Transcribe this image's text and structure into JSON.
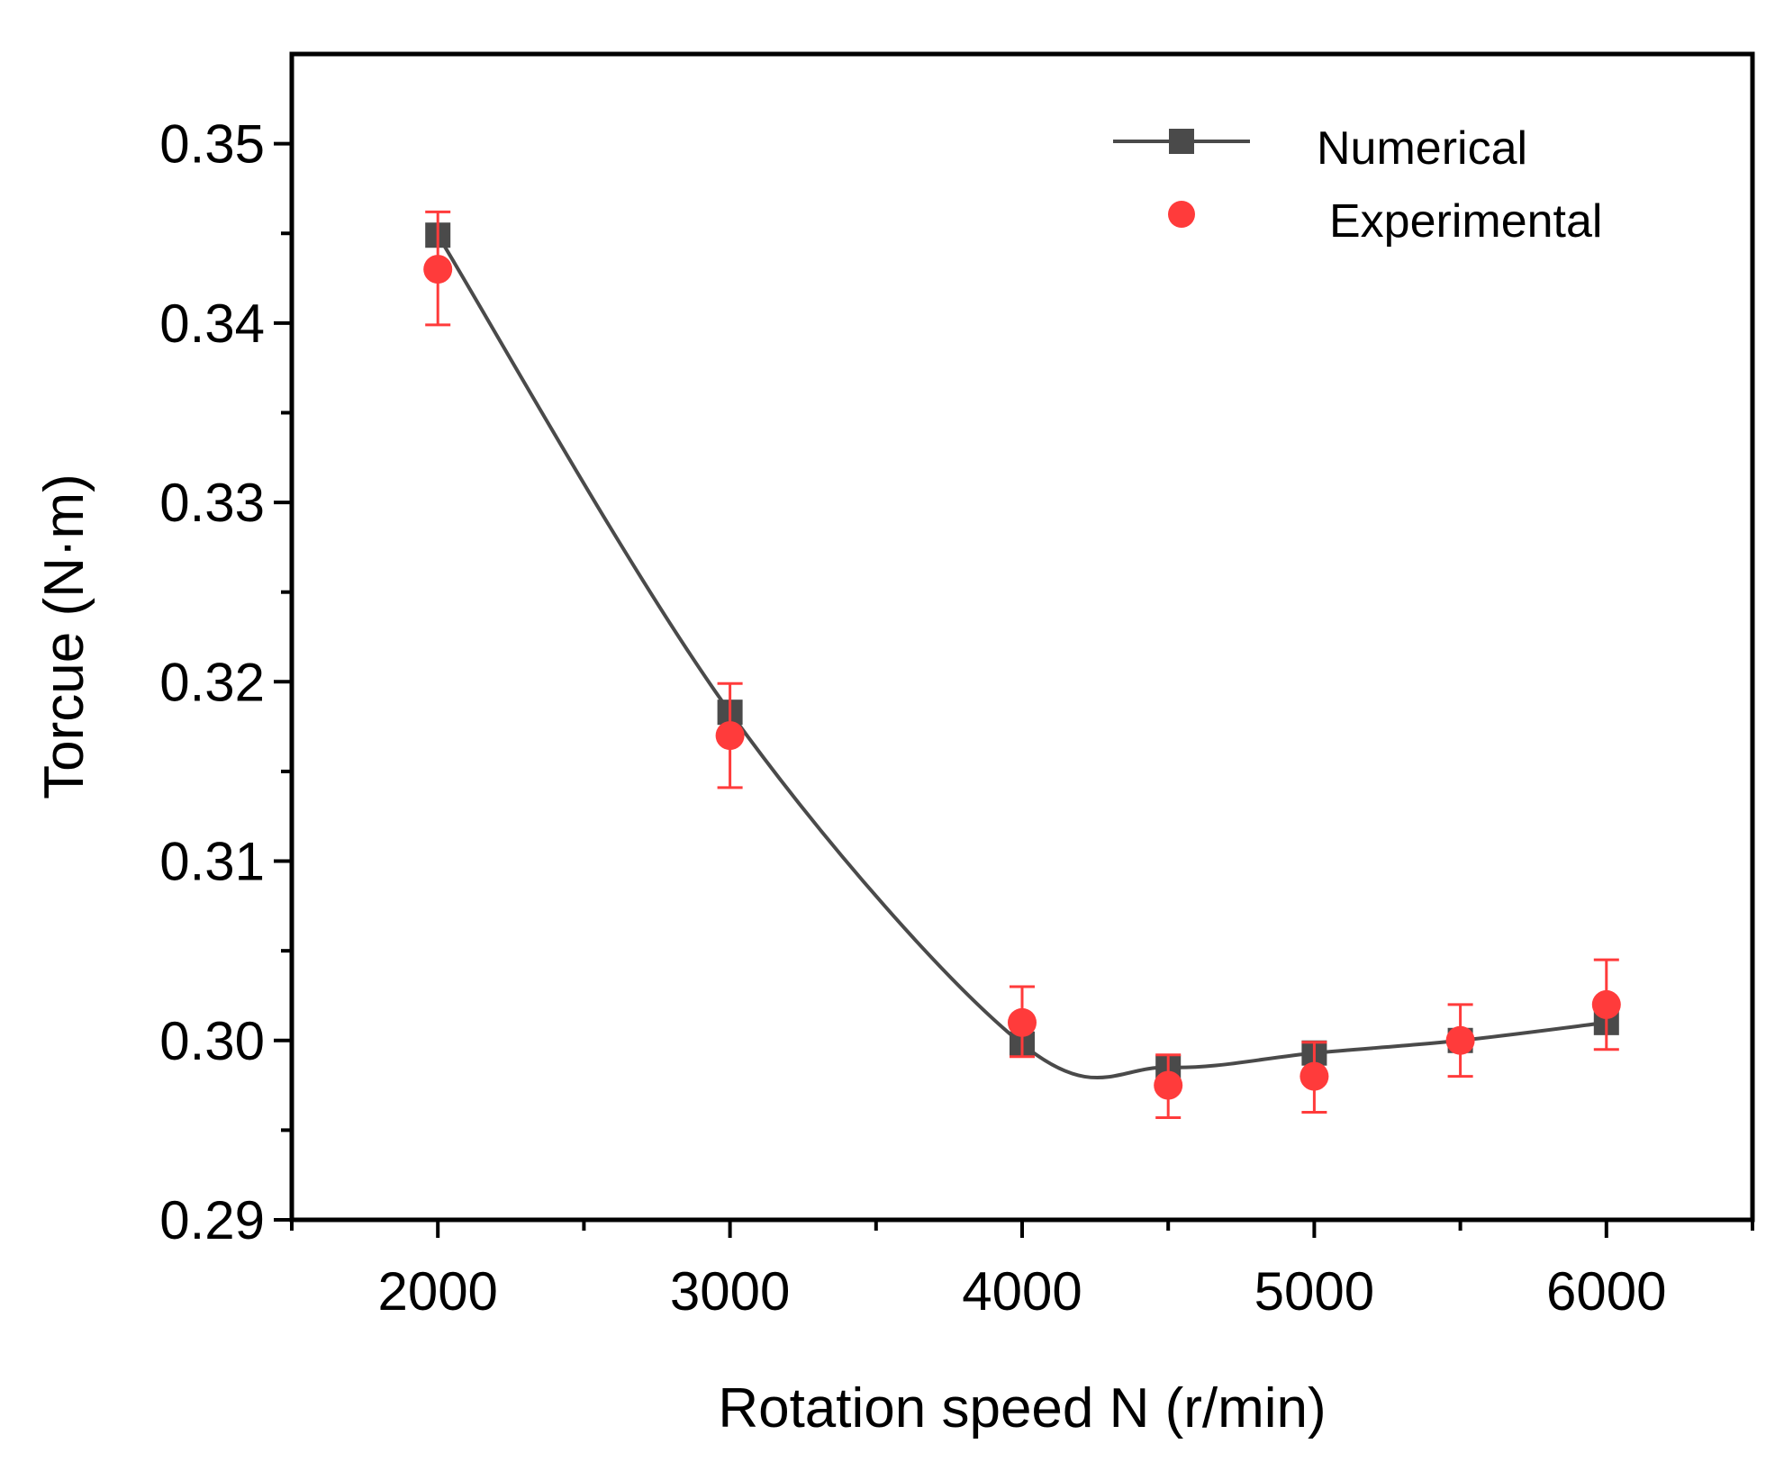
{
  "chart_data": {
    "type": "line",
    "title": "",
    "xlabel": "Rotation speed N (r/min)",
    "ylabel": "Torcue (N·m)",
    "xlim": [
      1500,
      6500
    ],
    "ylim": [
      0.29,
      0.355
    ],
    "x_ticks": [
      2000,
      3000,
      4000,
      5000,
      6000
    ],
    "x_tick_labels": [
      "2000",
      "3000",
      "4000",
      "5000",
      "6000"
    ],
    "x_minor_ticks": [
      1500,
      2500,
      3500,
      4500,
      5500,
      6500
    ],
    "y_ticks": [
      0.29,
      0.3,
      0.31,
      0.32,
      0.33,
      0.34,
      0.35
    ],
    "y_tick_labels": [
      "0.29",
      "0.30",
      "0.31",
      "0.32",
      "0.33",
      "0.34",
      "0.35"
    ],
    "y_minor_ticks": [
      0.295,
      0.305,
      0.315,
      0.325,
      0.335,
      0.345
    ],
    "grid": false,
    "legend_position": "top-right",
    "series": [
      {
        "name": "Numerical",
        "marker": "square",
        "color": "#4a4a4a",
        "smooth": true,
        "x": [
          2000,
          3000,
          4000,
          4500,
          5000,
          5500,
          6000
        ],
        "y": [
          0.3449,
          0.3183,
          0.2998,
          0.2985,
          0.2993,
          0.3,
          0.301
        ]
      },
      {
        "name": "Experimental",
        "marker": "circle",
        "color": "#ff3b3b",
        "x": [
          2000,
          3000,
          4000,
          4500,
          5000,
          5500,
          6000
        ],
        "y": [
          0.343,
          0.317,
          0.301,
          0.2975,
          0.298,
          0.3,
          0.302
        ],
        "error_low": [
          0.3399,
          0.3141,
          0.2991,
          0.2957,
          0.296,
          0.298,
          0.2995
        ],
        "error_high": [
          0.3462,
          0.3199,
          0.303,
          0.2992,
          0.2999,
          0.302,
          0.3045
        ]
      }
    ]
  }
}
